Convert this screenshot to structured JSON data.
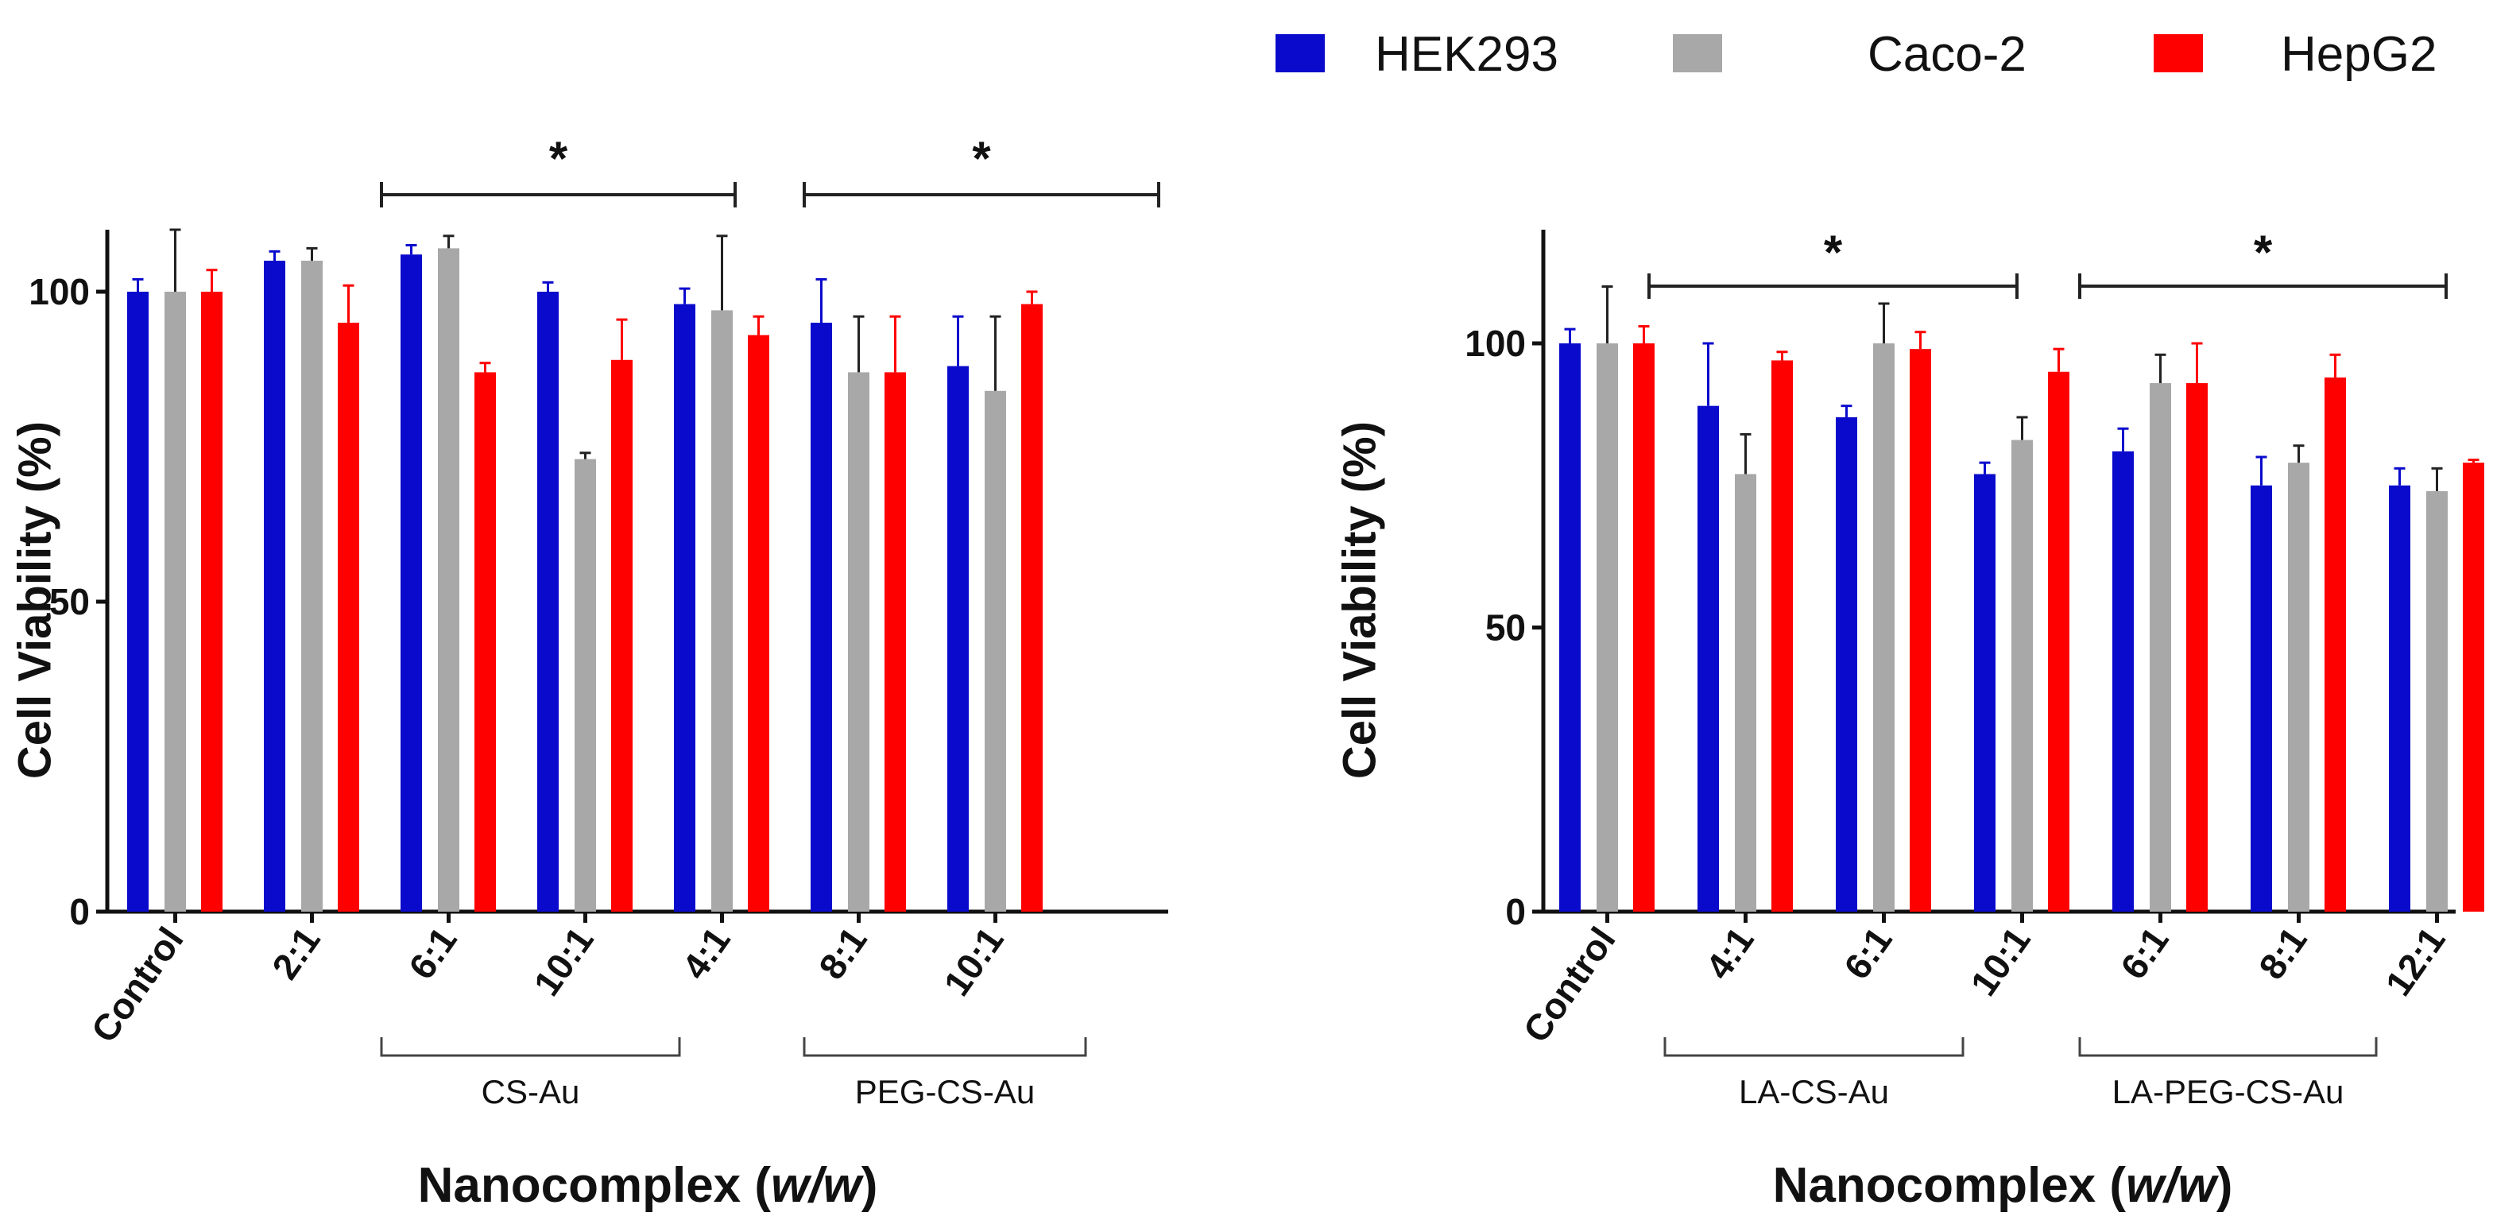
{
  "legend": [
    {
      "name": "HEK293",
      "color": "#0a0acc"
    },
    {
      "name": "Caco-2",
      "color": "#a8a8a8"
    },
    {
      "name": "HepG2",
      "color": "#ff0000"
    }
  ],
  "chart_data": [
    {
      "type": "bar",
      "title": "",
      "ylabel": "Cell Viability (%)",
      "xlabel": "Nanocomplex (w/w)",
      "xlabel_main": "Nanocomplex (",
      "xlabel_italic": "w/w",
      "xlabel_close": ")",
      "ylim": [
        0,
        110
      ],
      "yticks": [
        0,
        50,
        100
      ],
      "categories": [
        "Control",
        "2:1",
        "6:1",
        "10:1",
        "4:1",
        "8:1",
        "10:1"
      ],
      "series": [
        {
          "name": "HEK293",
          "values": [
            100,
            105,
            106,
            100,
            98,
            95,
            88
          ],
          "errors": [
            2,
            1.5,
            1.5,
            1.5,
            2.5,
            7,
            8
          ]
        },
        {
          "name": "Caco-2",
          "values": [
            100,
            105,
            107,
            73,
            97,
            87,
            84
          ],
          "errors": [
            10,
            2,
            2,
            1,
            12,
            9,
            12
          ]
        },
        {
          "name": "HepG2",
          "values": [
            100,
            95,
            87,
            89,
            93,
            87,
            98
          ],
          "errors": [
            3.5,
            6,
            1.5,
            6.5,
            3,
            9,
            2
          ]
        }
      ],
      "groups": [
        {
          "label": "CS-Au",
          "from": 1,
          "to": 3
        },
        {
          "label": "PEG-CS-Au",
          "from": 4,
          "to": 6
        }
      ],
      "significance": [
        {
          "label": "*",
          "from": 1,
          "to": 3
        },
        {
          "label": "*",
          "from": 4,
          "to": 6
        }
      ]
    },
    {
      "type": "bar",
      "title": "",
      "ylabel": "Cell Viability (%)",
      "xlabel": "Nanocomplex (w/w)",
      "xlabel_main": "Nanocomplex (",
      "xlabel_italic": "w/w",
      "xlabel_close": ")",
      "ylim": [
        0,
        120
      ],
      "yticks": [
        0,
        50,
        100
      ],
      "categories": [
        "Control",
        "4:1",
        "6:1",
        "10:1",
        "6:1",
        "8:1",
        "12:1"
      ],
      "series": [
        {
          "name": "HEK293",
          "values": [
            100,
            89,
            87,
            77,
            81,
            75,
            75
          ],
          "errors": [
            2.5,
            11,
            2,
            2,
            4,
            5,
            3
          ]
        },
        {
          "name": "Caco-2",
          "values": [
            100,
            77,
            100,
            83,
            93,
            79,
            74
          ],
          "errors": [
            10,
            7,
            7,
            4,
            5,
            3,
            4
          ]
        },
        {
          "name": "HepG2",
          "values": [
            100,
            97,
            99,
            95,
            93,
            94,
            79
          ],
          "errors": [
            3,
            1.5,
            3,
            4,
            7,
            4,
            0.5
          ]
        }
      ],
      "groups": [
        {
          "label": "LA-CS-Au",
          "from": 1,
          "to": 3
        },
        {
          "label": "LA-PEG-CS-Au",
          "from": 4,
          "to": 6
        }
      ],
      "significance": [
        {
          "label": "*",
          "from": 1,
          "to": 3
        },
        {
          "label": "*",
          "from": 4,
          "to": 6
        }
      ]
    }
  ]
}
